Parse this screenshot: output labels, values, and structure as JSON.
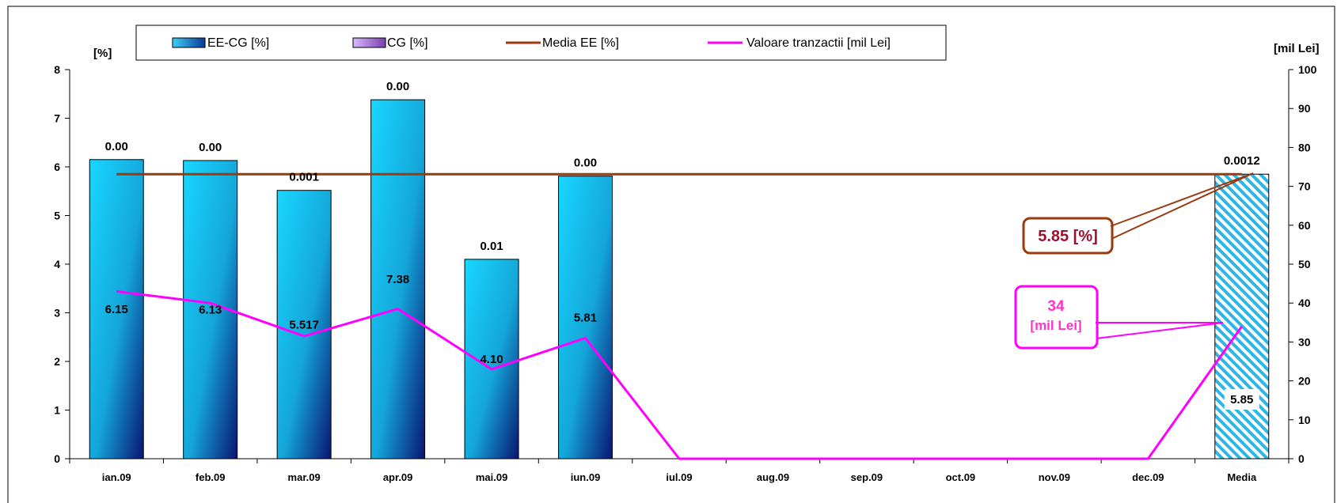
{
  "chart_data": {
    "type": "bar",
    "categories": [
      "ian.09",
      "feb.09",
      "mar.09",
      "apr.09",
      "mai.09",
      "iun.09",
      "iul.09",
      "aug.09",
      "sep.09",
      "oct.09",
      "nov.09",
      "dec.09",
      "Media"
    ],
    "y_left": {
      "label": "[%]",
      "range": [
        0,
        8
      ],
      "ticks": [
        "0",
        "1",
        "2",
        "3",
        "4",
        "5",
        "6",
        "7",
        "8"
      ]
    },
    "y_right": {
      "label": "[mil Lei]",
      "range": [
        0,
        100
      ],
      "ticks": [
        "0",
        "10",
        "20",
        "30",
        "40",
        "50",
        "60",
        "70",
        "80",
        "90",
        "100"
      ]
    },
    "grid": false,
    "legend_position": "top",
    "series": [
      {
        "name": "EE-CG [%]",
        "kind": "bar",
        "axis": "left",
        "color": "#1ec0ea",
        "values": [
          6.15,
          6.13,
          5.517,
          7.38,
          4.1,
          5.81,
          null,
          null,
          null,
          null,
          null,
          null,
          5.85
        ],
        "value_labels": [
          "6.15",
          "6.13",
          "5.517",
          "7.38",
          "4.10",
          "5.81",
          "",
          "",
          "",
          "",
          "",
          "",
          "5.85"
        ]
      },
      {
        "name": "CG [%]",
        "kind": "bar",
        "axis": "left",
        "color": "#b58fd6",
        "values": [
          0.0,
          0.0,
          0.001,
          0.0,
          0.01,
          0.0,
          null,
          null,
          null,
          null,
          null,
          null,
          0.0012
        ],
        "value_labels": [
          "0.00",
          "0.00",
          "0.001",
          "0.00",
          "0.01",
          "0.00",
          "",
          "",
          "",
          "",
          "",
          "",
          "0.0012"
        ]
      },
      {
        "name": "Media EE [%]",
        "kind": "line",
        "axis": "left",
        "color": "#9a3a0e",
        "values": [
          5.85,
          5.85,
          5.85,
          5.85,
          5.85,
          5.85,
          5.85,
          5.85,
          5.85,
          5.85,
          5.85,
          5.85,
          5.85
        ]
      },
      {
        "name": "Valoare tranzactii [mil Lei]",
        "kind": "line",
        "axis": "right",
        "color": "#ff00ff",
        "values": [
          43,
          40,
          31.5,
          38.5,
          23,
          31,
          0,
          0,
          0,
          0,
          0,
          0,
          34
        ]
      }
    ],
    "annotations": [
      {
        "text": "5.85 [%]",
        "color": "#9a1030"
      },
      {
        "text": "34",
        "text2": "[mil Lei]",
        "color": "#ff33cc"
      }
    ]
  }
}
